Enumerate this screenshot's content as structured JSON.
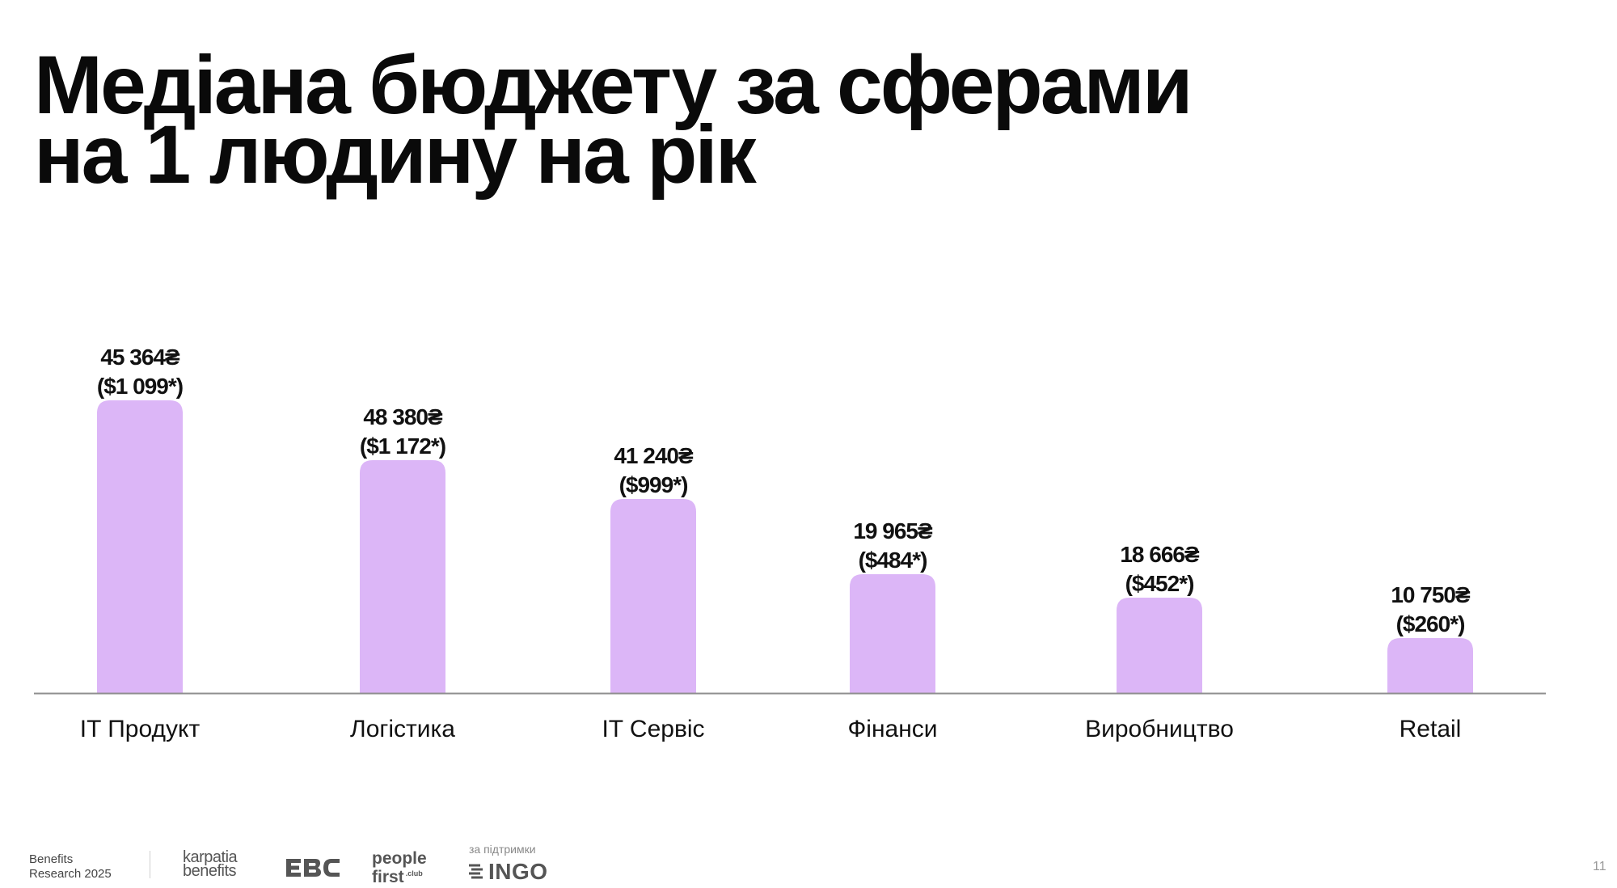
{
  "title_lines": [
    "Медіана бюджету за сферами",
    "на 1 людину на рік"
  ],
  "chart_data": {
    "type": "bar",
    "categories": [
      "IT Продукт",
      "Логістика",
      "IT Сервіс",
      "Фінанси",
      "Виробництво",
      "Retail"
    ],
    "values": [
      45364,
      48380,
      41240,
      19965,
      18666,
      10750
    ],
    "value_labels": [
      "45 364₴",
      "48 380₴",
      "41 240₴",
      "19 965₴",
      "18 666₴",
      "10 750₴"
    ],
    "usd_labels": [
      "($1 099*)",
      "($1 172*)",
      "($999*)",
      "($484*)",
      "($452*)",
      "($260*)"
    ],
    "ylim": [
      0,
      58000
    ],
    "grid": false,
    "legend": "none",
    "bar_color": "#dcb6f7"
  },
  "footer": {
    "research_lines": [
      "Benefits",
      "Research 2025"
    ],
    "karpatia_lines": [
      "karpatia",
      "benefits"
    ],
    "ebc": "EBC",
    "people_lines": [
      "people",
      "first"
    ],
    "people_club": ".club",
    "support_label": "за підтримки",
    "ingo": "INGO"
  },
  "page_number": "11"
}
